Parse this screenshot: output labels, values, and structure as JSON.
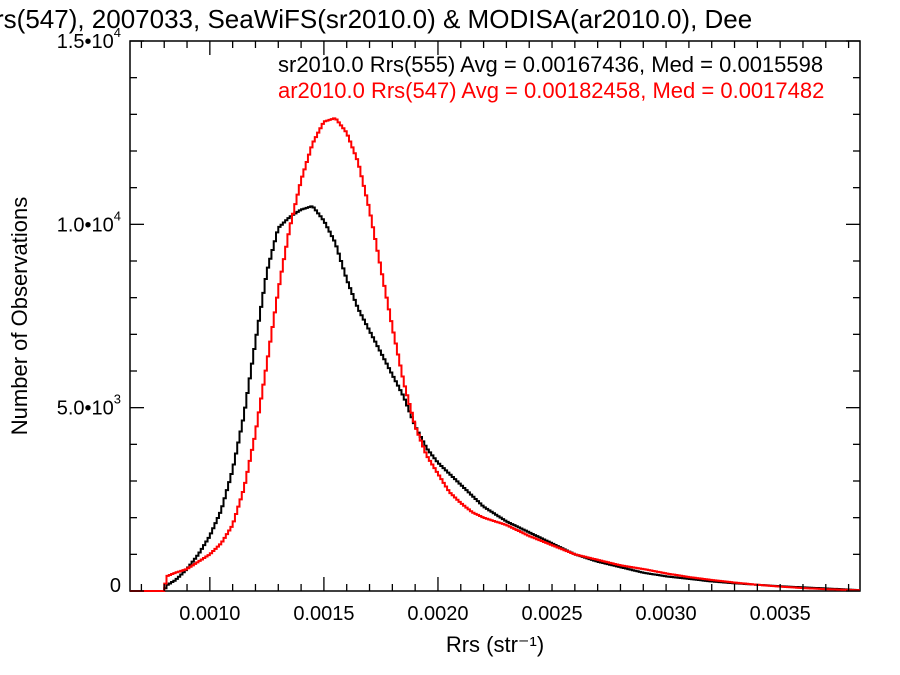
{
  "chart_data": {
    "type": "line",
    "title": "rs(547), 2007033, SeaWiFS(sr2010.0) & MODISA(ar2010.0), Dee",
    "xlabel": "Rrs (str⁻¹)",
    "ylabel": "Number of Observations",
    "xlim": [
      0.00065,
      0.00385
    ],
    "ylim": [
      0,
      15000
    ],
    "grid": false,
    "x_ticks": [
      {
        "value": 0.001,
        "label": "0.0010"
      },
      {
        "value": 0.0015,
        "label": "0.0015"
      },
      {
        "value": 0.002,
        "label": "0.0020"
      },
      {
        "value": 0.0025,
        "label": "0.0025"
      },
      {
        "value": 0.003,
        "label": "0.0030"
      },
      {
        "value": 0.0035,
        "label": "0.0035"
      }
    ],
    "y_ticks": [
      {
        "value": 0,
        "mantissa": "0",
        "exponent": ""
      },
      {
        "value": 5000,
        "mantissa": "5.0•10",
        "exponent": "3"
      },
      {
        "value": 10000,
        "mantissa": "1.0•10",
        "exponent": "4"
      },
      {
        "value": 15000,
        "mantissa": "1.5•10",
        "exponent": "4"
      }
    ],
    "annotations": [
      {
        "text": "sr2010.0 Rrs(555) Avg = 0.00167436, Med = 0.0015598",
        "color": "#000000"
      },
      {
        "text": "ar2010.0 Rrs(547) Avg = 0.00182458, Med = 0.0017482",
        "color": "#ff0000"
      }
    ],
    "series": [
      {
        "color": "#000000",
        "x": [
          0.0008,
          0.00081,
          0.00085,
          0.0009,
          0.00095,
          0.001,
          0.00105,
          0.0011,
          0.00115,
          0.0012,
          0.00125,
          0.0013,
          0.00135,
          0.0014,
          0.00145,
          0.0015,
          0.00155,
          0.0016,
          0.00165,
          0.0017,
          0.00175,
          0.0018,
          0.00185,
          0.0019,
          0.00195,
          0.002,
          0.0021,
          0.0022,
          0.0023,
          0.0024,
          0.0025,
          0.0026,
          0.0027,
          0.0028,
          0.0029,
          0.003,
          0.0031,
          0.0032,
          0.0033,
          0.0034,
          0.0035,
          0.0036,
          0.0037,
          0.0038,
          0.00385
        ],
        "y": [
          0,
          150,
          300,
          600,
          1000,
          1500,
          2200,
          3300,
          4800,
          6800,
          8700,
          9900,
          10200,
          10400,
          10500,
          10100,
          9500,
          8500,
          7700,
          7100,
          6500,
          5900,
          5300,
          4500,
          3900,
          3500,
          2900,
          2300,
          1900,
          1600,
          1300,
          1000,
          800,
          650,
          500,
          400,
          330,
          260,
          210,
          170,
          130,
          100,
          70,
          40,
          20
        ]
      },
      {
        "color": "#ff0000",
        "x": [
          0.0008,
          0.00081,
          0.00085,
          0.0009,
          0.00095,
          0.001,
          0.00105,
          0.0011,
          0.00115,
          0.0012,
          0.00125,
          0.0013,
          0.00135,
          0.0014,
          0.00145,
          0.0015,
          0.00155,
          0.0016,
          0.00165,
          0.0017,
          0.00175,
          0.0018,
          0.00185,
          0.0019,
          0.00195,
          0.002,
          0.00205,
          0.0021,
          0.00215,
          0.0022,
          0.0023,
          0.0024,
          0.0025,
          0.0026,
          0.0027,
          0.0028,
          0.0029,
          0.003,
          0.0031,
          0.0032,
          0.0033,
          0.0034,
          0.0035,
          0.0036,
          0.0037,
          0.0038,
          0.00385
        ],
        "y": [
          0,
          400,
          500,
          600,
          800,
          1000,
          1300,
          1800,
          2800,
          4300,
          6200,
          8200,
          9900,
          11200,
          12200,
          12800,
          12900,
          12500,
          11700,
          10400,
          8800,
          7200,
          5700,
          4500,
          3700,
          3200,
          2700,
          2400,
          2150,
          2000,
          1800,
          1500,
          1250,
          1000,
          850,
          700,
          600,
          480,
          380,
          300,
          230,
          170,
          120,
          80,
          50,
          30,
          20
        ]
      }
    ]
  }
}
